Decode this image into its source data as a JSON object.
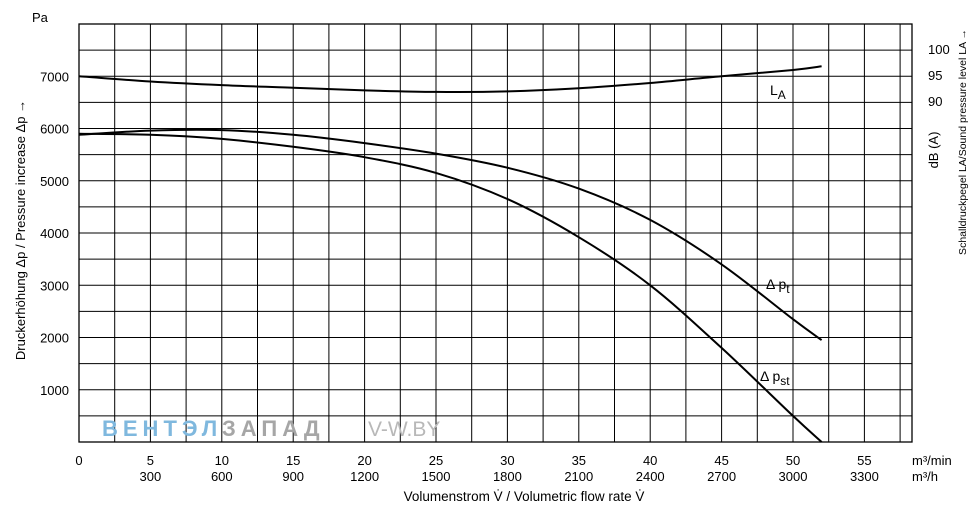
{
  "chart_data": {
    "type": "line",
    "y_unit": "Pa",
    "ylabel": "Druckerhöhung Δp / Pressure increase  Δp →",
    "ylim": [
      0,
      8000
    ],
    "y_ticks": [
      1000,
      2000,
      3000,
      4000,
      5000,
      6000,
      7000
    ],
    "xlabel": "Volumenstrom V̇ / Volumetric flow rate V̇",
    "xlim": [
      0,
      3500
    ],
    "x_ticks_m3min": [
      "0",
      "5",
      "10",
      "15",
      "20",
      "25",
      "30",
      "35",
      "40",
      "45",
      "50",
      "55"
    ],
    "x_ticks_m3h": [
      "300",
      "600",
      "900",
      "1200",
      "1500",
      "1800",
      "2100",
      "2400",
      "2700",
      "3000",
      "3300"
    ],
    "x_unit_m3min": "m³/min",
    "x_unit_m3h": "m³/h",
    "y2_label": "Schalldruckpegel LA/Sound pressure level LA →",
    "y2_unit": "dB (A)",
    "y2_ticks": [
      "90",
      "95",
      "100"
    ],
    "series": [
      {
        "name": "LA",
        "x": [
          0,
          300,
          600,
          900,
          1200,
          1500,
          1800,
          2100,
          2400,
          2700,
          3000,
          3120
        ],
        "y": [
          7000,
          6900,
          6830,
          6780,
          6730,
          6700,
          6710,
          6770,
          6870,
          7000,
          7120,
          7190
        ]
      },
      {
        "name": "Δ pt",
        "x": [
          0,
          300,
          600,
          900,
          1200,
          1500,
          1800,
          2100,
          2400,
          2700,
          3000,
          3120
        ],
        "y": [
          5880,
          5960,
          5970,
          5880,
          5720,
          5520,
          5250,
          4850,
          4250,
          3400,
          2350,
          1950
        ]
      },
      {
        "name": "Δ pst",
        "x": [
          0,
          300,
          600,
          900,
          1200,
          1500,
          1800,
          2100,
          2400,
          2700,
          3000,
          3120
        ],
        "y": [
          5900,
          5880,
          5800,
          5650,
          5450,
          5150,
          4650,
          3920,
          3000,
          1800,
          500,
          0
        ]
      }
    ],
    "series_labels": [
      {
        "base": "L",
        "sub": "A"
      },
      {
        "base": "Δ p",
        "sub": "t"
      },
      {
        "base": "Δ p",
        "sub": "st"
      }
    ],
    "grid": true
  },
  "watermark": {
    "part1": "ВЕНТЭЛ",
    "part2": "ЗАПАД",
    "part3": "V-W.BY"
  },
  "colors": {
    "line": "#000000",
    "grid": "#000000",
    "watermark_blue": "#7fb8de",
    "watermark_gray": "#a6a6a6"
  }
}
